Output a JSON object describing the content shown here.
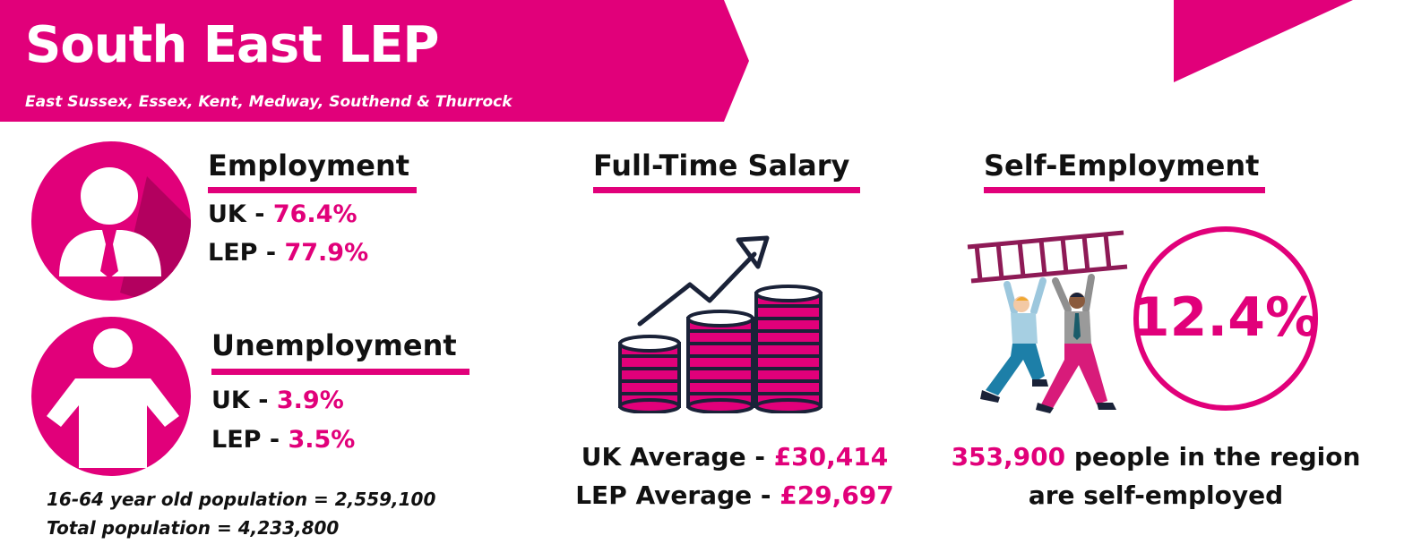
{
  "header": {
    "title": "South East LEP",
    "subtitle": "East Sussex, Essex, Kent, Medway, Southend & Thurrock"
  },
  "employment": {
    "heading": "Employment",
    "uk_label": "UK - ",
    "uk_value": "76.4%",
    "lep_label": "LEP - ",
    "lep_value": "77.9%"
  },
  "unemployment": {
    "heading": "Unemployment",
    "uk_label": "UK - ",
    "uk_value": "3.9%",
    "lep_label": "LEP - ",
    "lep_value": "3.5%"
  },
  "population": {
    "working_age": "16-64 year old population = 2,559,100",
    "total": "Total population = 4,233,800"
  },
  "salary": {
    "heading": "Full-Time Salary",
    "uk_label": "UK Average - ",
    "uk_value": "£30,414",
    "lep_label": "LEP Average - ",
    "lep_value": "£29,697"
  },
  "self_employment": {
    "heading": "Self-Employment",
    "percent": "12.4%",
    "count": "353,900",
    "line1_rest": " people in the region",
    "line2": "are self-employed"
  },
  "colors": {
    "accent": "#e1007a",
    "dark_accent": "#a8005c",
    "navy": "#1a2238"
  },
  "icons": [
    "person-with-tie-icon",
    "person-arms-out-icon",
    "coins-growth-icon",
    "ladder-people-icon"
  ]
}
